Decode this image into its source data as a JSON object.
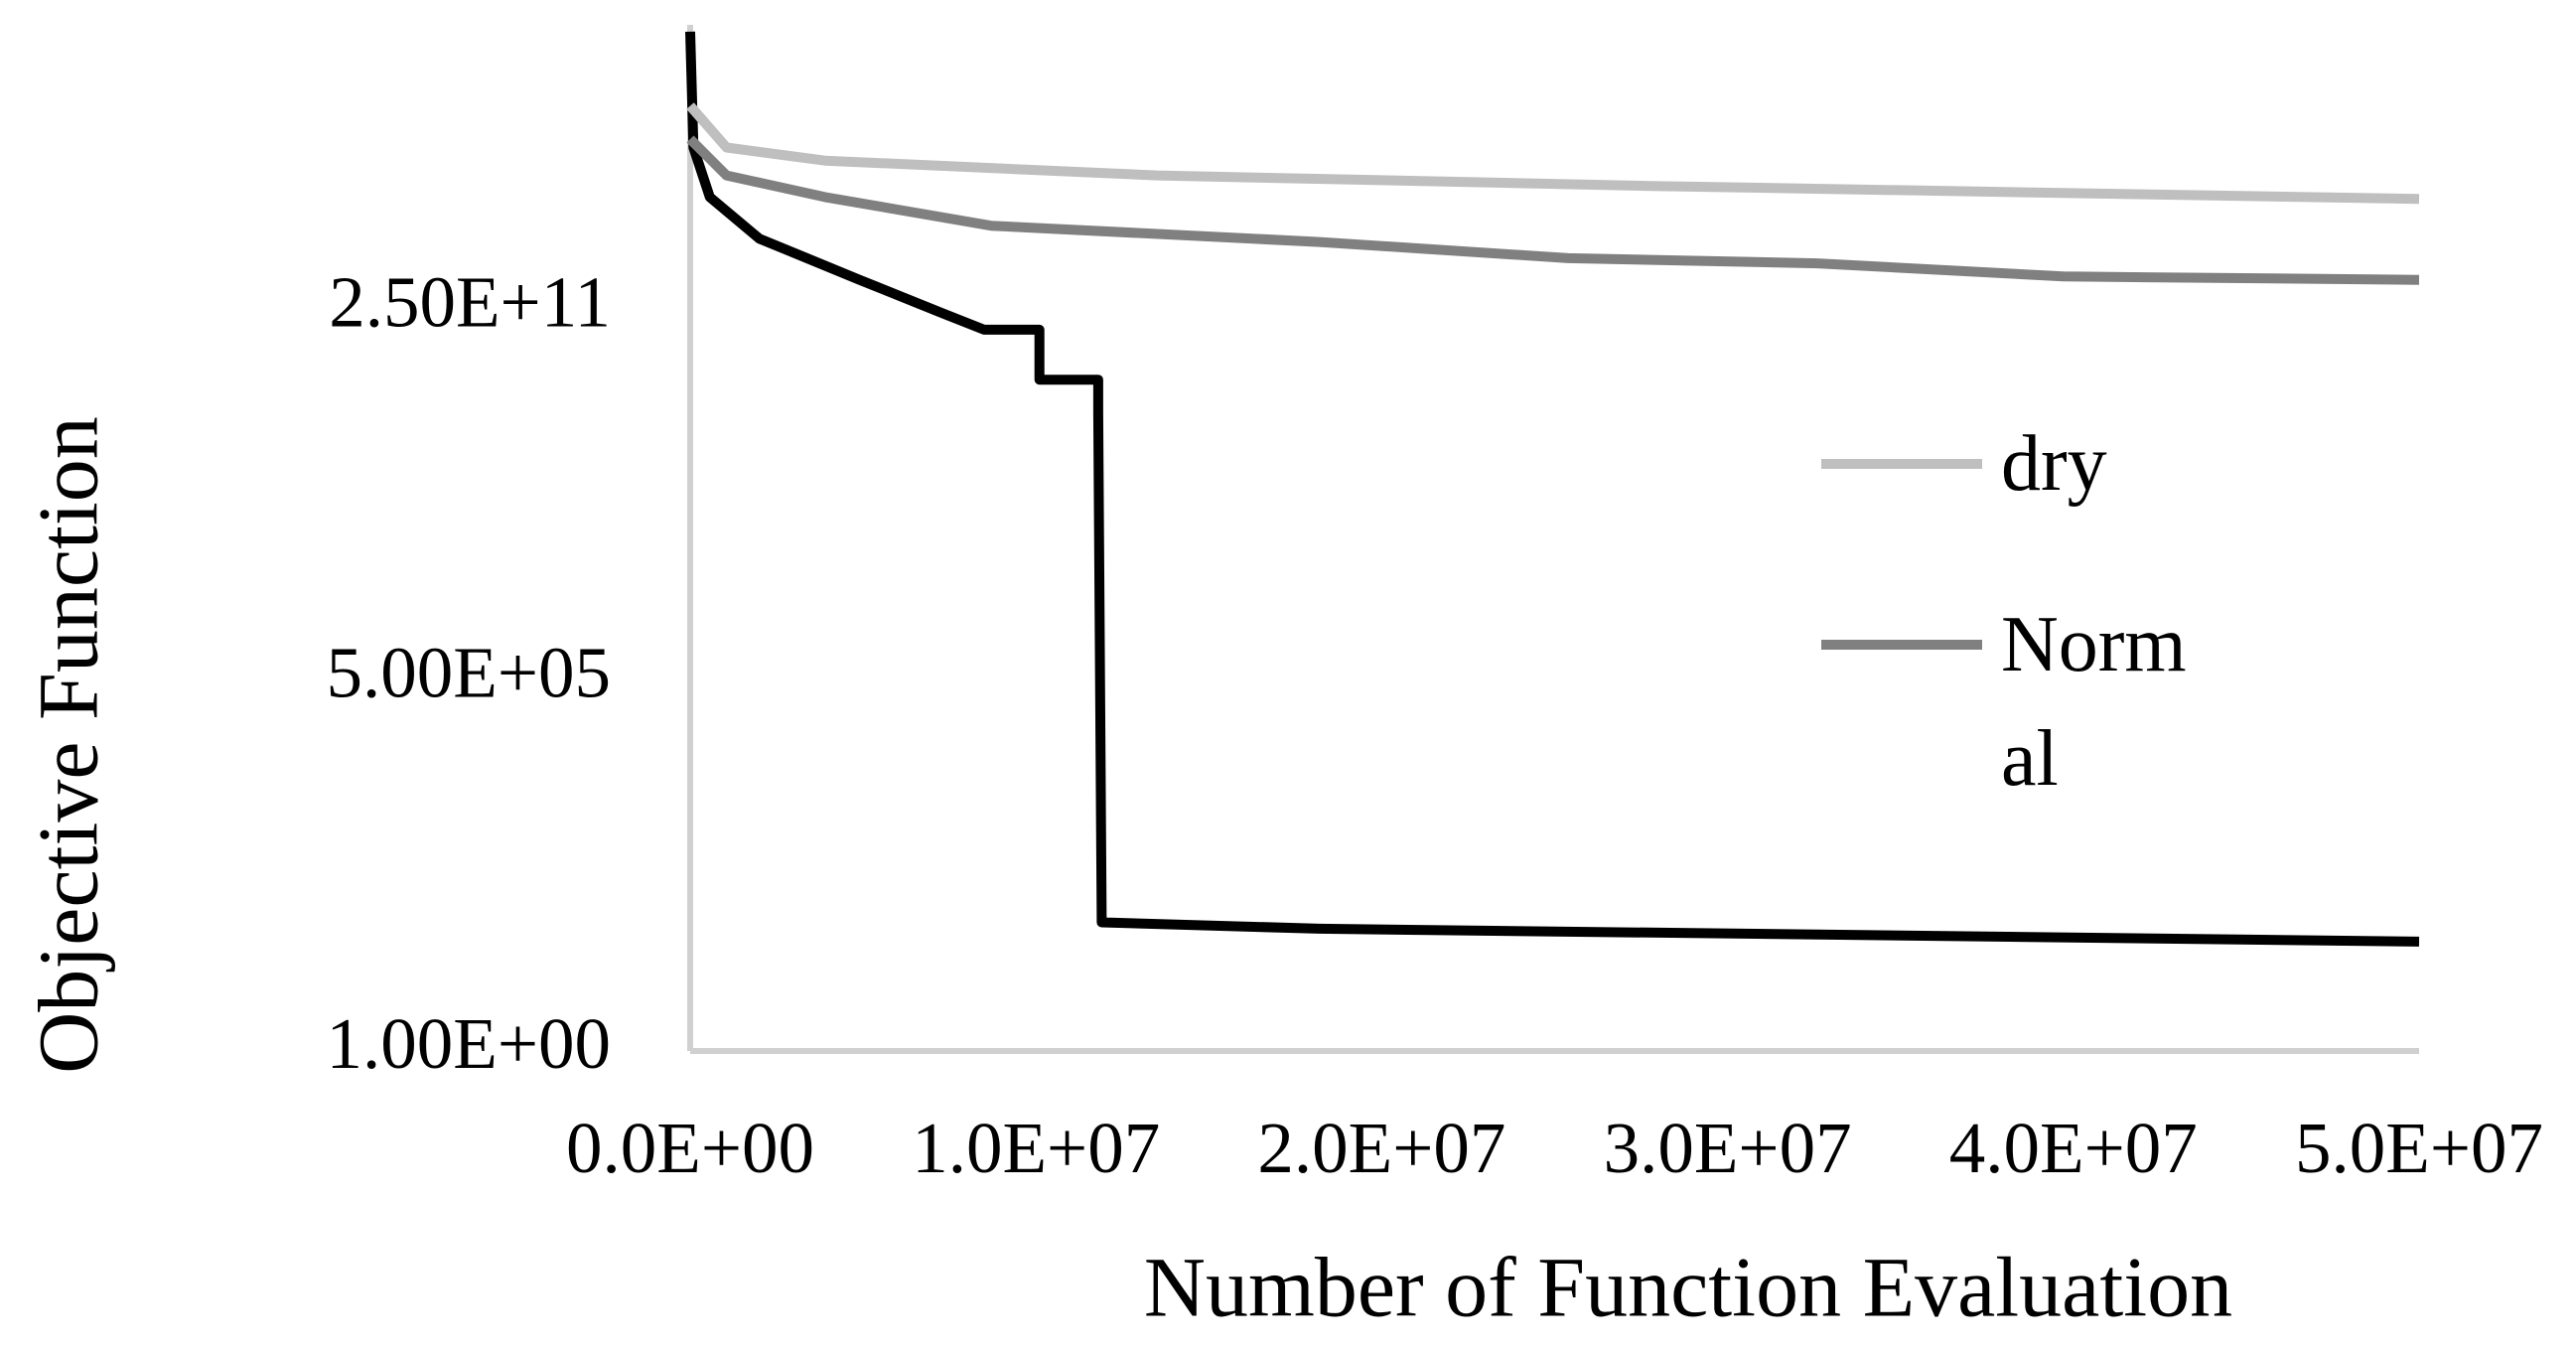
{
  "chart_data": {
    "type": "line",
    "xlabel": "Number of Function Evaluation",
    "ylabel": "Objective Function",
    "yscale": "log",
    "xlim": [
      0,
      50000000
    ],
    "ylim": [
      1,
      6000000000000000.0
    ],
    "xticks": [
      {
        "value": 0,
        "label": "0.0E+00"
      },
      {
        "value": 10000000,
        "label": "1.0E+07"
      },
      {
        "value": 20000000,
        "label": "2.0E+07"
      },
      {
        "value": 30000000,
        "label": "3.0E+07"
      },
      {
        "value": 40000000,
        "label": "4.0E+07"
      },
      {
        "value": 50000000,
        "label": "5.0E+07"
      }
    ],
    "yticks": [
      {
        "value": 1,
        "label": "1.00E+00"
      },
      {
        "value": 500000,
        "label": "5.00E+05"
      },
      {
        "value": 250000000000,
        "label": "2.50E+11"
      }
    ],
    "legend": "right",
    "series": [
      {
        "name": "dry",
        "color": "#bfbfbf",
        "x": [
          0,
          1050000,
          3900000,
          13500000,
          27800000,
          50000000
        ],
        "values": [
          340000000000000.0,
          78000000000000.0,
          49000000000000.0,
          29000000000000.0,
          20000000000000.0,
          12600000000000.0
        ]
      },
      {
        "name": "Normal",
        "color": "#808080",
        "x": [
          0,
          1050000,
          3900000,
          8700000,
          18200000,
          25400000,
          32600000,
          39700000,
          50000000
        ],
        "values": [
          105000000000000.0,
          29000000000000.0,
          13500000000000.0,
          4900000000000.0,
          2750000000000.0,
          1550000000000.0,
          1290000000000.0,
          810000000000.0,
          720000000000.0
        ]
      },
      {
        "color": "#000000",
        "x": [
          0,
          96000,
          570000,
          2000000,
          4900000,
          7300000,
          8500000,
          10100000,
          10100000,
          11800000,
          11800000,
          11900000,
          18200000,
          50000000
        ],
        "values": [
          4700000000000000.0,
          78000000000000.0,
          13500000000000.0,
          3100000000000.0,
          720000000000.0,
          220000000000.0,
          123000000000.0,
          123000000000.0,
          21000000000.0,
          21000000000.0,
          6600000000.0,
          95,
          76,
          48
        ]
      }
    ]
  }
}
